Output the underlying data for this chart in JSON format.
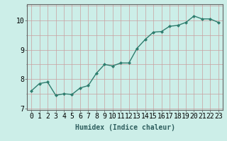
{
  "x": [
    0,
    1,
    2,
    3,
    4,
    5,
    6,
    7,
    8,
    9,
    10,
    11,
    12,
    13,
    14,
    15,
    16,
    17,
    18,
    19,
    20,
    21,
    22,
    23
  ],
  "y": [
    7.6,
    7.85,
    7.9,
    7.45,
    7.5,
    7.48,
    7.7,
    7.78,
    8.2,
    8.5,
    8.45,
    8.55,
    8.55,
    9.05,
    9.35,
    9.6,
    9.62,
    9.8,
    9.83,
    9.93,
    10.15,
    10.05,
    10.05,
    9.93
  ],
  "line_color": "#2e7d6e",
  "marker": "D",
  "marker_size": 2,
  "bg_color": "#cceee8",
  "grid_color": "#c8a0a0",
  "ylabel_major": [
    7,
    8,
    9,
    10
  ],
  "ylim": [
    6.95,
    10.55
  ],
  "xlim": [
    -0.5,
    23.5
  ],
  "xlabel": "Humidex (Indice chaleur)",
  "xlabel_fontsize": 7,
  "tick_fontsize": 7,
  "line_width": 1.0
}
